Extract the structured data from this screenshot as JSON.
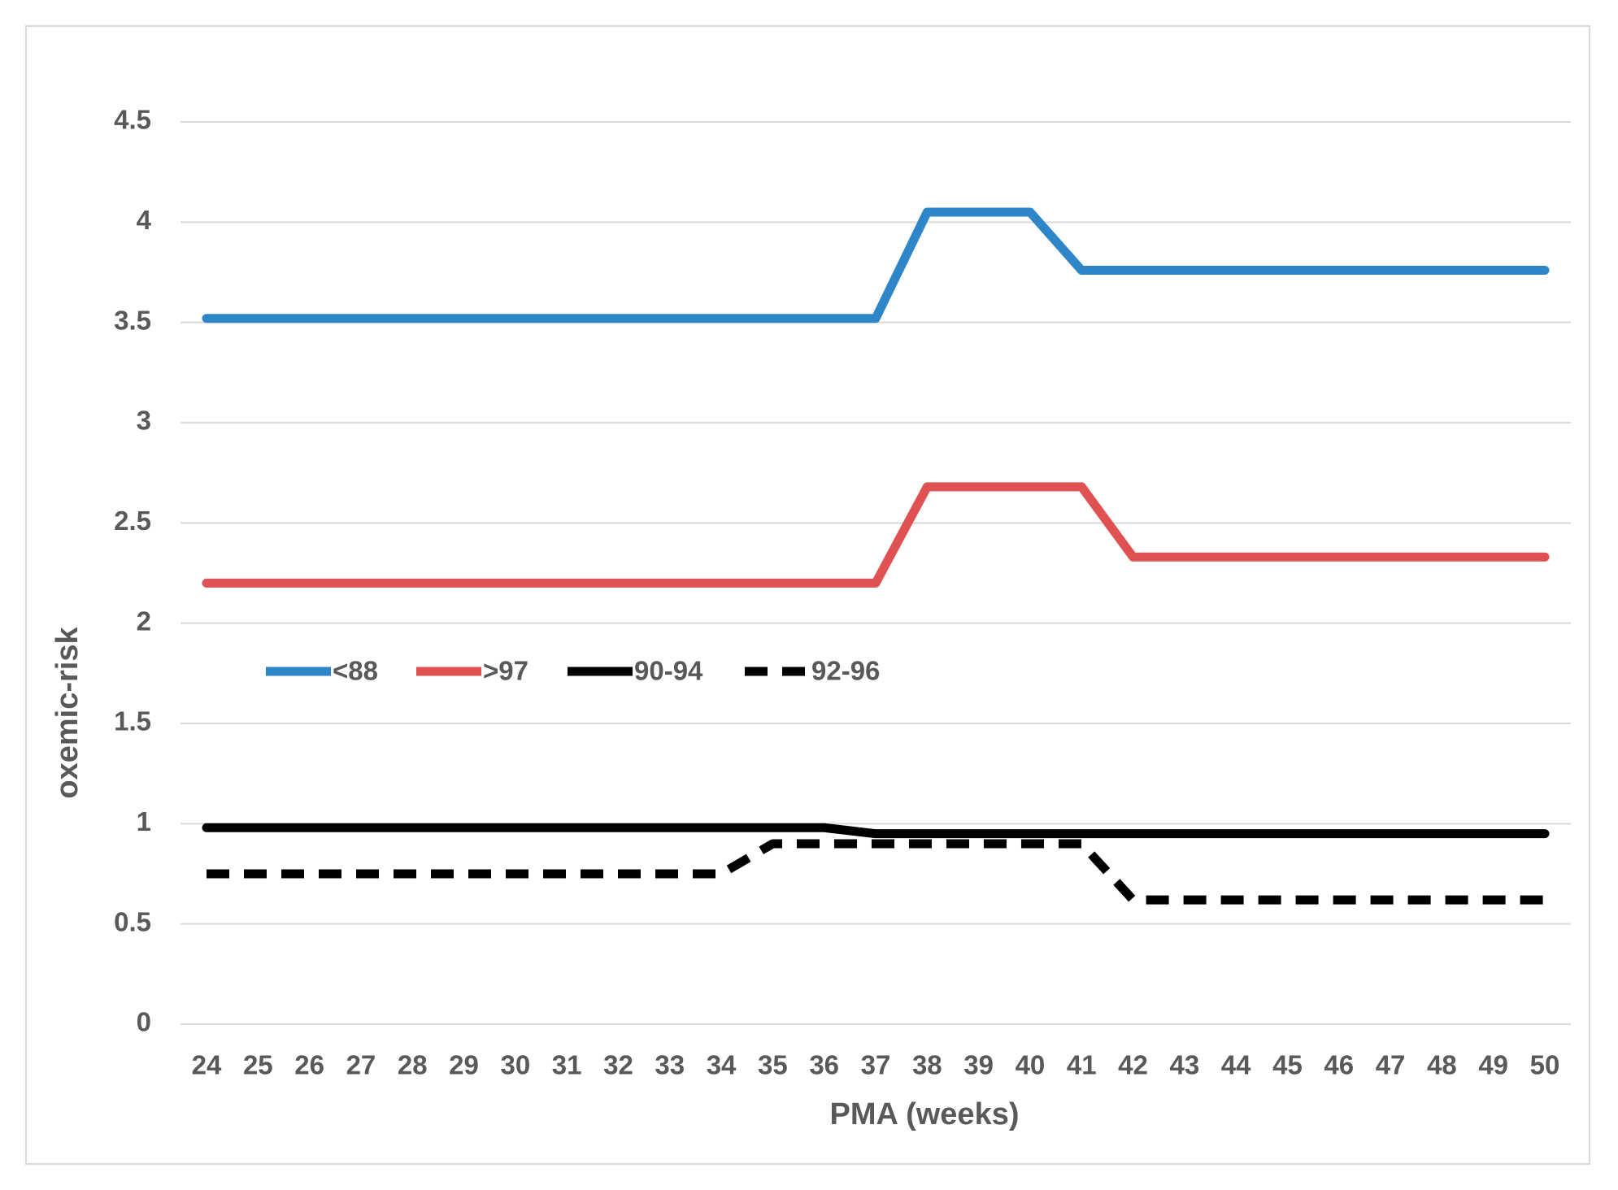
{
  "chart_data": {
    "type": "line",
    "x_label": "PMA (weeks)",
    "y_label": "oxemic-risk",
    "x": [
      24,
      25,
      26,
      27,
      28,
      29,
      30,
      31,
      32,
      33,
      34,
      35,
      36,
      37,
      38,
      39,
      40,
      41,
      42,
      43,
      44,
      45,
      46,
      47,
      48,
      49,
      50
    ],
    "xlim": [
      24,
      50
    ],
    "ylim": [
      0,
      4.5
    ],
    "yticks": [
      0,
      0.5,
      1,
      1.5,
      2,
      2.5,
      3,
      3.5,
      4,
      4.5
    ],
    "grid": true,
    "legend": "left",
    "series": [
      {
        "name": "<88",
        "color": "#2e86c8",
        "dashed": false,
        "values": [
          3.52,
          3.52,
          3.52,
          3.52,
          3.52,
          3.52,
          3.52,
          3.52,
          3.52,
          3.52,
          3.52,
          3.52,
          3.52,
          3.52,
          4.05,
          4.05,
          4.05,
          3.76,
          3.76,
          3.76,
          3.76,
          3.76,
          3.76,
          3.76,
          3.76,
          3.76,
          3.76
        ]
      },
      {
        "name": ">97",
        "color": "#e05252",
        "dashed": false,
        "values": [
          2.2,
          2.2,
          2.2,
          2.2,
          2.2,
          2.2,
          2.2,
          2.2,
          2.2,
          2.2,
          2.2,
          2.2,
          2.2,
          2.2,
          2.68,
          2.68,
          2.68,
          2.68,
          2.33,
          2.33,
          2.33,
          2.33,
          2.33,
          2.33,
          2.33,
          2.33,
          2.33
        ]
      },
      {
        "name": "90-94",
        "color": "#000000",
        "dashed": false,
        "values": [
          0.98,
          0.98,
          0.98,
          0.98,
          0.98,
          0.98,
          0.98,
          0.98,
          0.98,
          0.98,
          0.98,
          0.98,
          0.98,
          0.95,
          0.95,
          0.95,
          0.95,
          0.95,
          0.95,
          0.95,
          0.95,
          0.95,
          0.95,
          0.95,
          0.95,
          0.95,
          0.95
        ]
      },
      {
        "name": "92-96",
        "color": "#000000",
        "dashed": true,
        "values": [
          0.75,
          0.75,
          0.75,
          0.75,
          0.75,
          0.75,
          0.75,
          0.75,
          0.75,
          0.75,
          0.75,
          0.9,
          0.9,
          0.9,
          0.9,
          0.9,
          0.9,
          0.9,
          0.62,
          0.62,
          0.62,
          0.62,
          0.62,
          0.62,
          0.62,
          0.62,
          0.62
        ]
      }
    ]
  }
}
